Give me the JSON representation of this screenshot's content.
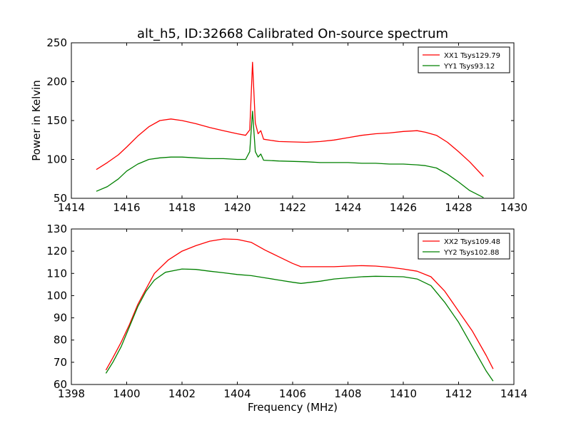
{
  "figure": {
    "title": "alt_h5, ID:32668 Calibrated On-source spectrum"
  },
  "chart_data": [
    {
      "type": "line",
      "xlabel": "",
      "ylabel": "Power in Kelvin",
      "xlim": [
        1414,
        1430
      ],
      "ylim": [
        50,
        250
      ],
      "xticks": [
        1414,
        1416,
        1418,
        1420,
        1422,
        1424,
        1426,
        1428,
        1430
      ],
      "yticks": [
        50,
        100,
        150,
        200,
        250
      ],
      "legend": "top-right",
      "grid": false,
      "series": [
        {
          "name": "XX1 Tsys129.79",
          "color": "#ff0000",
          "points": [
            [
              1414.9,
              87
            ],
            [
              1415.3,
              96
            ],
            [
              1415.7,
              106
            ],
            [
              1416.0,
              116
            ],
            [
              1416.4,
              130
            ],
            [
              1416.8,
              142
            ],
            [
              1417.2,
              150
            ],
            [
              1417.6,
              152
            ],
            [
              1418.0,
              150
            ],
            [
              1418.5,
              146
            ],
            [
              1419.0,
              141
            ],
            [
              1419.5,
              137
            ],
            [
              1420.0,
              133
            ],
            [
              1420.3,
              131
            ],
            [
              1420.45,
              138
            ],
            [
              1420.55,
              225
            ],
            [
              1420.65,
              147
            ],
            [
              1420.75,
              133
            ],
            [
              1420.85,
              137
            ],
            [
              1420.95,
              126
            ],
            [
              1421.5,
              123
            ],
            [
              1422.5,
              122
            ],
            [
              1423.0,
              123
            ],
            [
              1423.5,
              125
            ],
            [
              1424.0,
              128
            ],
            [
              1424.5,
              131
            ],
            [
              1425.0,
              133
            ],
            [
              1425.5,
              134
            ],
            [
              1426.0,
              136
            ],
            [
              1426.5,
              137
            ],
            [
              1426.8,
              135
            ],
            [
              1427.2,
              131
            ],
            [
              1427.6,
              122
            ],
            [
              1428.0,
              110
            ],
            [
              1428.4,
              97
            ],
            [
              1428.9,
              78
            ]
          ]
        },
        {
          "name": "YY1 Tsys93.12",
          "color": "#008000",
          "points": [
            [
              1414.9,
              59
            ],
            [
              1415.3,
              65
            ],
            [
              1415.7,
              75
            ],
            [
              1416.0,
              85
            ],
            [
              1416.4,
              94
            ],
            [
              1416.8,
              100
            ],
            [
              1417.2,
              102
            ],
            [
              1417.6,
              103
            ],
            [
              1418.0,
              103
            ],
            [
              1418.5,
              102
            ],
            [
              1419.0,
              101
            ],
            [
              1419.5,
              101
            ],
            [
              1420.0,
              100
            ],
            [
              1420.3,
              100
            ],
            [
              1420.45,
              110
            ],
            [
              1420.55,
              162
            ],
            [
              1420.65,
              110
            ],
            [
              1420.75,
              103
            ],
            [
              1420.85,
              107
            ],
            [
              1420.95,
              99
            ],
            [
              1421.5,
              98
            ],
            [
              1422.5,
              97
            ],
            [
              1423.0,
              96
            ],
            [
              1423.5,
              96
            ],
            [
              1424.0,
              96
            ],
            [
              1424.5,
              95
            ],
            [
              1425.0,
              95
            ],
            [
              1425.5,
              94
            ],
            [
              1426.0,
              94
            ],
            [
              1426.5,
              93
            ],
            [
              1426.8,
              92
            ],
            [
              1427.2,
              89
            ],
            [
              1427.6,
              81
            ],
            [
              1428.0,
              71
            ],
            [
              1428.4,
              60
            ],
            [
              1428.9,
              51
            ]
          ]
        }
      ]
    },
    {
      "type": "line",
      "xlabel": "Frequency (MHz)",
      "ylabel": "",
      "xlim": [
        1398,
        1414
      ],
      "ylim": [
        60,
        130
      ],
      "xticks": [
        1398,
        1400,
        1402,
        1404,
        1406,
        1408,
        1410,
        1412,
        1414
      ],
      "yticks": [
        60,
        70,
        80,
        90,
        100,
        110,
        120,
        130
      ],
      "legend": "top-right",
      "grid": false,
      "series": [
        {
          "name": "XX2 Tsys109.48",
          "color": "#ff0000",
          "points": [
            [
              1399.25,
              66.5
            ],
            [
              1399.5,
              72
            ],
            [
              1399.8,
              79
            ],
            [
              1400.1,
              87
            ],
            [
              1400.4,
              96
            ],
            [
              1400.7,
              103
            ],
            [
              1401.0,
              110
            ],
            [
              1401.5,
              116
            ],
            [
              1402.0,
              120
            ],
            [
              1402.5,
              122.5
            ],
            [
              1403.0,
              124.5
            ],
            [
              1403.5,
              125.5
            ],
            [
              1404.0,
              125.3
            ],
            [
              1404.5,
              124
            ],
            [
              1405.0,
              120.5
            ],
            [
              1405.5,
              117.5
            ],
            [
              1406.0,
              114.5
            ],
            [
              1406.3,
              113
            ],
            [
              1407.0,
              113
            ],
            [
              1407.5,
              113
            ],
            [
              1408.0,
              113.3
            ],
            [
              1408.5,
              113.5
            ],
            [
              1409.0,
              113.3
            ],
            [
              1409.5,
              112.8
            ],
            [
              1410.0,
              112
            ],
            [
              1410.5,
              111
            ],
            [
              1411.0,
              108.5
            ],
            [
              1411.5,
              102
            ],
            [
              1412.0,
              93
            ],
            [
              1412.5,
              84
            ],
            [
              1413.0,
              73
            ],
            [
              1413.25,
              67
            ]
          ]
        },
        {
          "name": "YY2 Tsys102.88",
          "color": "#008000",
          "points": [
            [
              1399.25,
              65
            ],
            [
              1399.5,
              70
            ],
            [
              1399.8,
              77
            ],
            [
              1400.1,
              86
            ],
            [
              1400.4,
              95
            ],
            [
              1400.7,
              102
            ],
            [
              1401.0,
              107
            ],
            [
              1401.4,
              110.5
            ],
            [
              1402.0,
              112
            ],
            [
              1402.5,
              111.8
            ],
            [
              1403.0,
              111
            ],
            [
              1403.5,
              110.3
            ],
            [
              1404.0,
              109.5
            ],
            [
              1404.5,
              109
            ],
            [
              1405.0,
              108
            ],
            [
              1405.5,
              107
            ],
            [
              1406.0,
              106
            ],
            [
              1406.3,
              105.5
            ],
            [
              1407.0,
              106.5
            ],
            [
              1407.5,
              107.5
            ],
            [
              1408.0,
              108
            ],
            [
              1408.5,
              108.5
            ],
            [
              1409.0,
              108.7
            ],
            [
              1409.5,
              108.6
            ],
            [
              1410.0,
              108.5
            ],
            [
              1410.5,
              107.5
            ],
            [
              1411.0,
              104.5
            ],
            [
              1411.5,
              97
            ],
            [
              1412.0,
              88
            ],
            [
              1412.5,
              77
            ],
            [
              1413.0,
              66
            ],
            [
              1413.25,
              61.5
            ]
          ]
        }
      ]
    }
  ]
}
